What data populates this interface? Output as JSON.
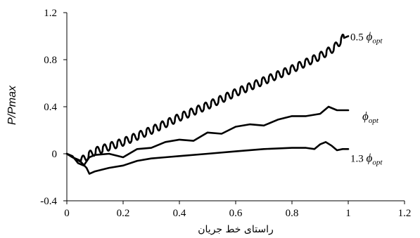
{
  "chart_data": {
    "type": "line",
    "title": "",
    "xlabel": "راستای خط جریان",
    "ylabel": "P/Pmax",
    "xlim": [
      0,
      1.2
    ],
    "ylim": [
      -0.4,
      1.2
    ],
    "x_ticks": [
      "0",
      "0.2",
      "0.4",
      "0.6",
      "0.8",
      "1",
      "1.2"
    ],
    "y_ticks": [
      "-0.4",
      "0",
      "0.4",
      "0.8",
      "1.2"
    ],
    "grid": false,
    "series": [
      {
        "name": "0.5 φopt",
        "label_prefix": "0.5 ",
        "label_symbol": "ϕ",
        "label_sub": "opt",
        "oscillation": 0.05,
        "x": [
          0,
          0.02,
          0.05,
          0.08,
          0.1,
          0.2,
          0.3,
          0.4,
          0.5,
          0.6,
          0.7,
          0.8,
          0.9,
          0.95,
          0.98,
          1.0
        ],
        "y": [
          0,
          -0.03,
          -0.06,
          -0.01,
          0.02,
          0.1,
          0.2,
          0.31,
          0.41,
          0.52,
          0.62,
          0.72,
          0.83,
          0.9,
          0.98,
          1.0
        ]
      },
      {
        "name": "φopt",
        "label_prefix": "",
        "label_symbol": "ϕ",
        "label_sub": "opt",
        "oscillation": 0,
        "x": [
          0,
          0.02,
          0.04,
          0.06,
          0.08,
          0.1,
          0.15,
          0.2,
          0.25,
          0.3,
          0.35,
          0.4,
          0.45,
          0.5,
          0.55,
          0.6,
          0.65,
          0.7,
          0.75,
          0.8,
          0.85,
          0.9,
          0.93,
          0.96,
          1.0
        ],
        "y": [
          0,
          -0.02,
          -0.08,
          -0.1,
          -0.03,
          -0.01,
          0.0,
          -0.03,
          0.04,
          0.05,
          0.1,
          0.12,
          0.11,
          0.18,
          0.17,
          0.23,
          0.25,
          0.24,
          0.29,
          0.32,
          0.32,
          0.34,
          0.4,
          0.37,
          0.37
        ]
      },
      {
        "name": "1.3 φopt",
        "label_prefix": "1.3 ",
        "label_symbol": "ϕ",
        "label_sub": "opt",
        "oscillation": 0,
        "x": [
          0,
          0.02,
          0.05,
          0.07,
          0.08,
          0.1,
          0.15,
          0.2,
          0.25,
          0.3,
          0.35,
          0.4,
          0.5,
          0.6,
          0.7,
          0.8,
          0.85,
          0.88,
          0.9,
          0.92,
          0.94,
          0.96,
          0.98,
          1.0
        ],
        "y": [
          0,
          -0.03,
          -0.07,
          -0.12,
          -0.17,
          -0.15,
          -0.12,
          -0.1,
          -0.06,
          -0.04,
          -0.03,
          -0.02,
          0.0,
          0.02,
          0.04,
          0.05,
          0.05,
          0.04,
          0.08,
          0.1,
          0.07,
          0.03,
          0.04,
          0.04
        ]
      }
    ]
  }
}
